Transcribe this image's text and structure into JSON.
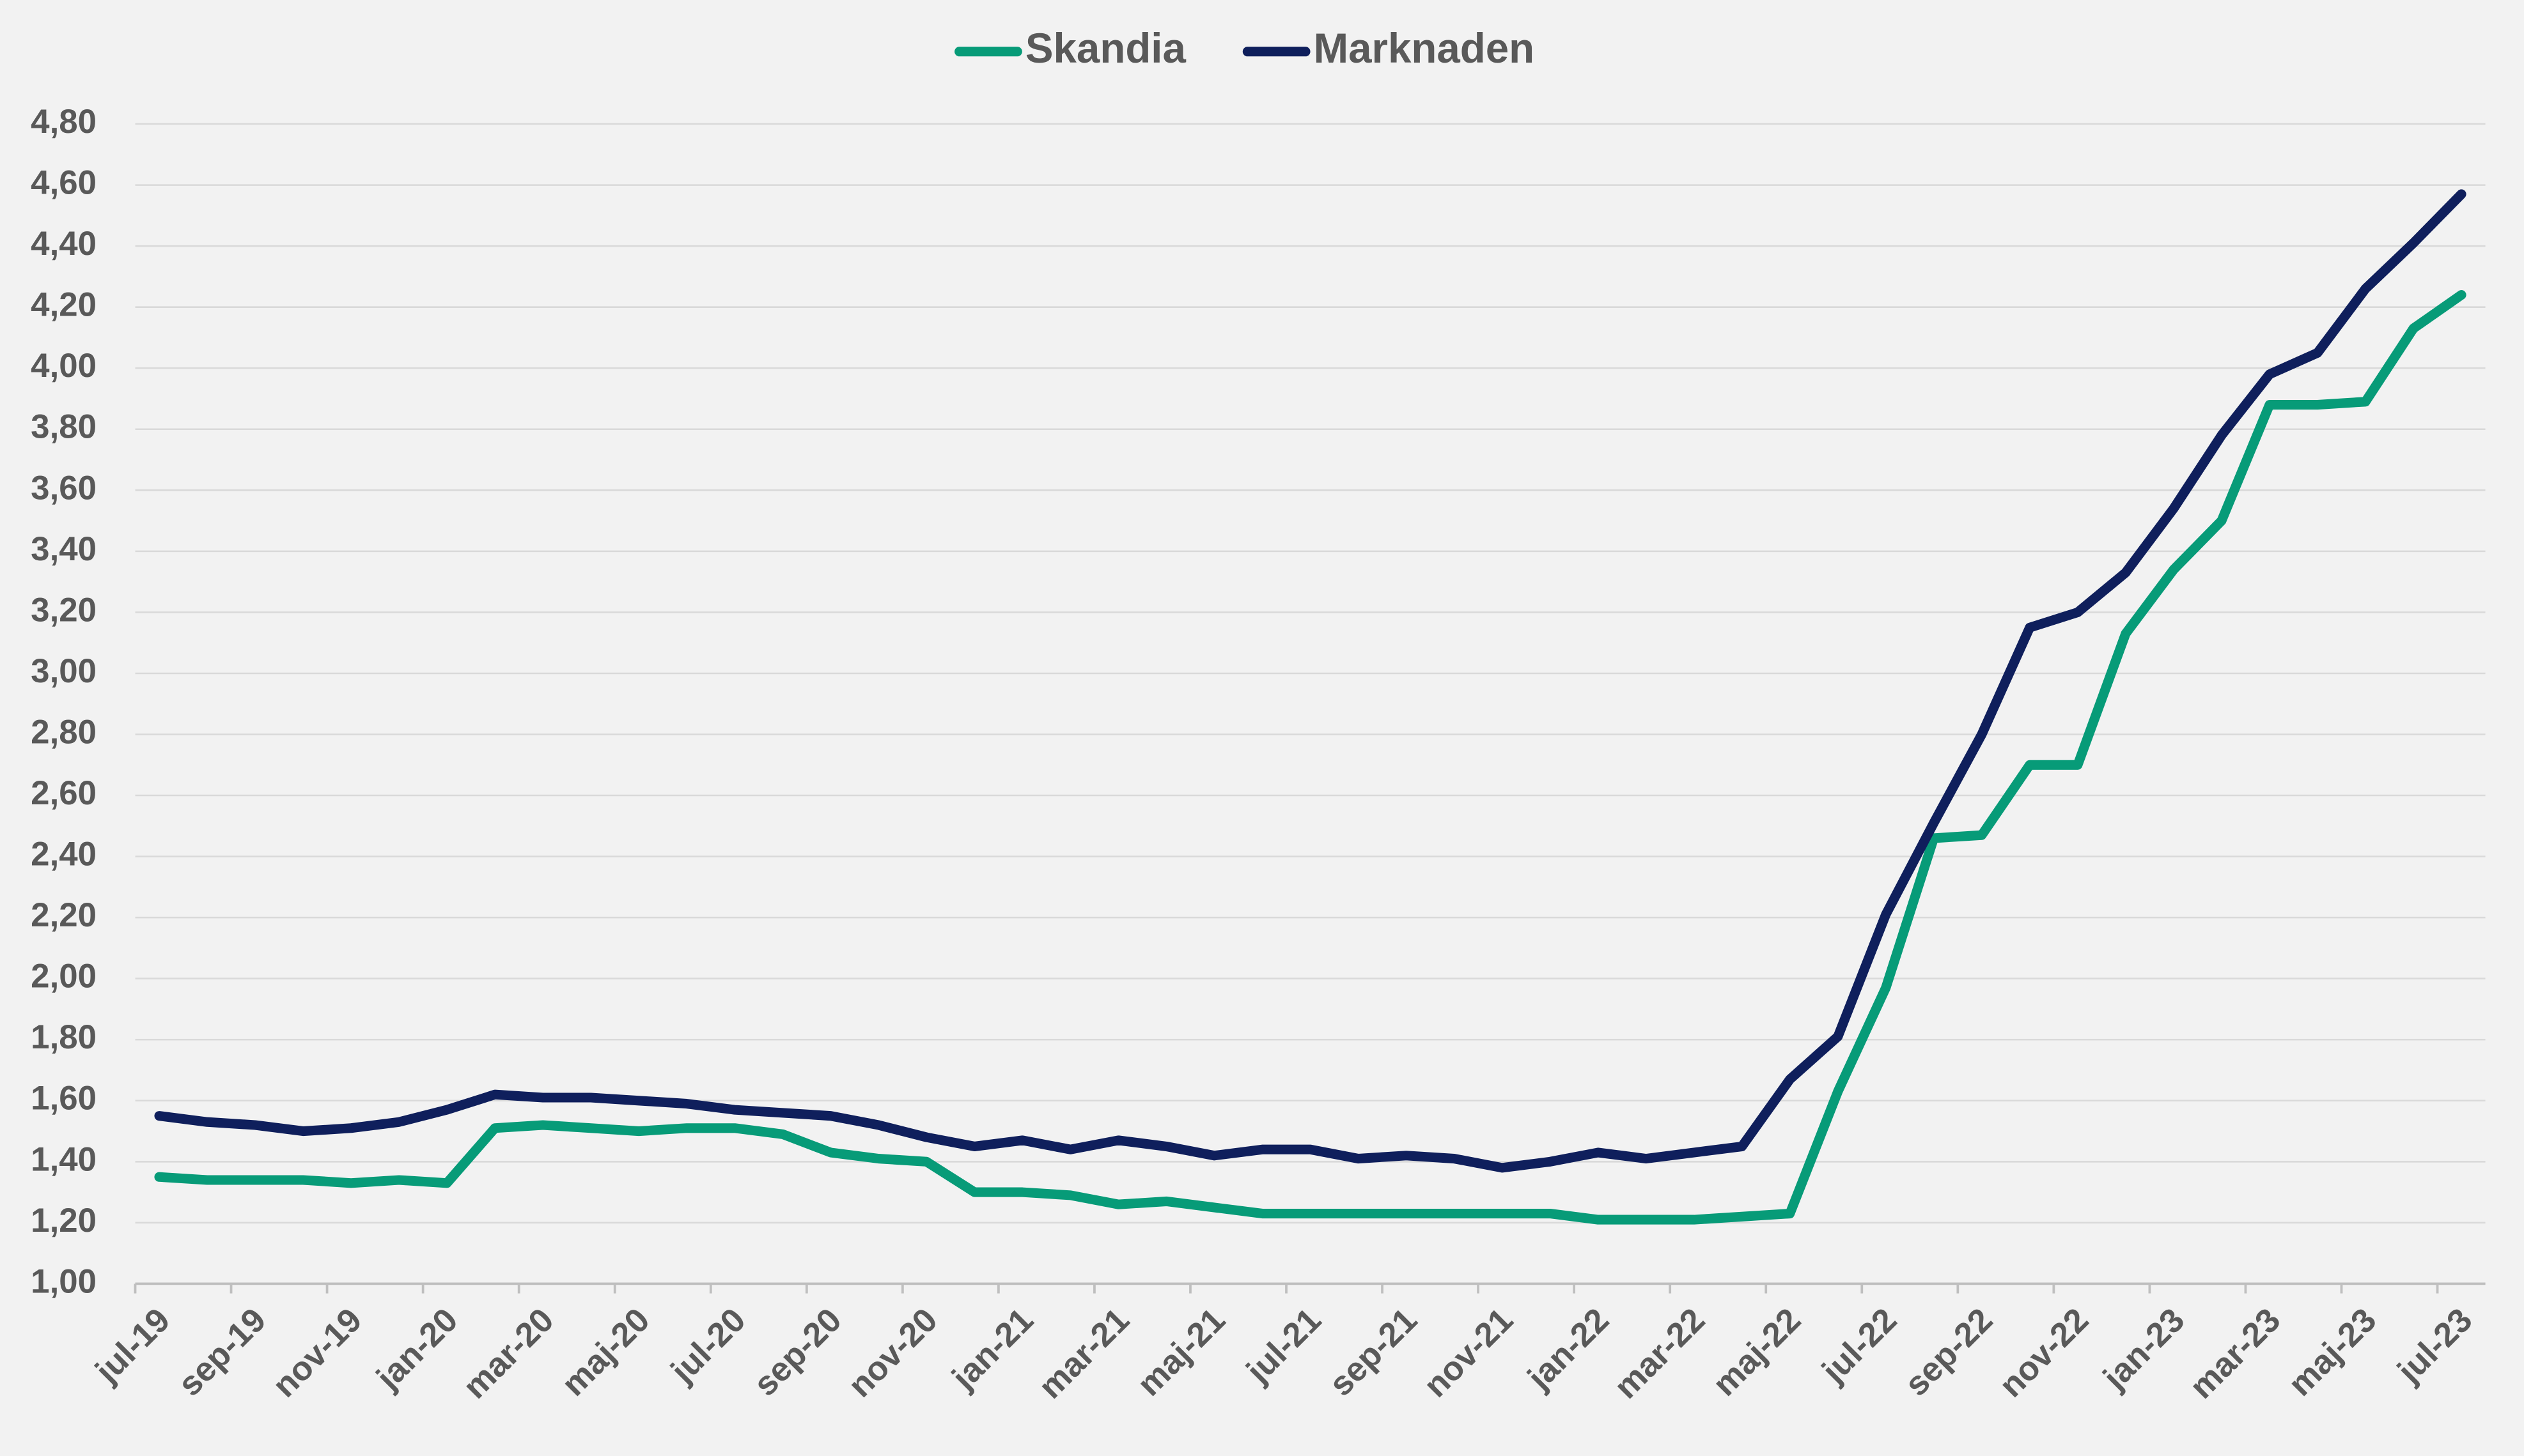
{
  "chart_data": {
    "type": "line",
    "categories": [
      "jul-19",
      null,
      "sep-19",
      null,
      "nov-19",
      null,
      "jan-20",
      null,
      "mar-20",
      null,
      "maj-20",
      null,
      "jul-20",
      null,
      "sep-20",
      null,
      "nov-20",
      null,
      "jan-21",
      null,
      "mar-21",
      null,
      "maj-21",
      null,
      "jul-21",
      null,
      "sep-21",
      null,
      "nov-21",
      null,
      "jan-22",
      null,
      "mar-22",
      null,
      "maj-22",
      null,
      "jul-22",
      null,
      "sep-22",
      null,
      "nov-22",
      null,
      "jan-23",
      null,
      "mar-23",
      null,
      "maj-23",
      null,
      "jul-23"
    ],
    "series": [
      {
        "name": "Skandia",
        "color": "#079b78",
        "values": [
          1.35,
          1.34,
          1.34,
          1.34,
          1.33,
          1.34,
          1.33,
          1.51,
          1.52,
          1.51,
          1.5,
          1.51,
          1.51,
          1.49,
          1.43,
          1.41,
          1.4,
          1.3,
          1.3,
          1.29,
          1.26,
          1.27,
          1.25,
          1.23,
          1.23,
          1.23,
          1.23,
          1.23,
          1.23,
          1.23,
          1.21,
          1.21,
          1.21,
          1.22,
          1.23,
          1.63,
          1.97,
          2.46,
          2.47,
          2.7,
          2.7,
          3.13,
          3.34,
          3.5,
          3.88,
          3.88,
          3.89,
          4.13,
          4.24
        ]
      },
      {
        "name": "Marknaden",
        "color": "#0f1f5c",
        "values": [
          1.55,
          1.53,
          1.52,
          1.5,
          1.51,
          1.53,
          1.57,
          1.62,
          1.61,
          1.61,
          1.6,
          1.59,
          1.57,
          1.56,
          1.55,
          1.52,
          1.48,
          1.45,
          1.47,
          1.44,
          1.47,
          1.45,
          1.42,
          1.44,
          1.44,
          1.41,
          1.42,
          1.41,
          1.38,
          1.4,
          1.43,
          1.41,
          1.43,
          1.45,
          1.67,
          1.81,
          2.21,
          2.51,
          2.8,
          3.15,
          3.2,
          3.33,
          3.54,
          3.78,
          3.98,
          4.05,
          4.26,
          4.41,
          4.57
        ]
      }
    ],
    "ylim": [
      1.0,
      4.8
    ],
    "yticks": [
      {
        "value": 1.0,
        "label": "1,00"
      },
      {
        "value": 1.2,
        "label": "1,20"
      },
      {
        "value": 1.4,
        "label": "1,40"
      },
      {
        "value": 1.6,
        "label": "1,60"
      },
      {
        "value": 1.8,
        "label": "1,80"
      },
      {
        "value": 2.0,
        "label": "2,00"
      },
      {
        "value": 2.2,
        "label": "2,20"
      },
      {
        "value": 2.4,
        "label": "2,40"
      },
      {
        "value": 2.6,
        "label": "2,60"
      },
      {
        "value": 2.8,
        "label": "2,80"
      },
      {
        "value": 3.0,
        "label": "3,00"
      },
      {
        "value": 3.2,
        "label": "3,20"
      },
      {
        "value": 3.4,
        "label": "3,40"
      },
      {
        "value": 3.6,
        "label": "3,60"
      },
      {
        "value": 3.8,
        "label": "3,80"
      },
      {
        "value": 4.0,
        "label": "4,00"
      },
      {
        "value": 4.2,
        "label": "4,20"
      },
      {
        "value": 4.4,
        "label": "4,40"
      },
      {
        "value": 4.6,
        "label": "4,60"
      },
      {
        "value": 4.8,
        "label": "4,80"
      }
    ],
    "grid": true,
    "legend": "top"
  }
}
